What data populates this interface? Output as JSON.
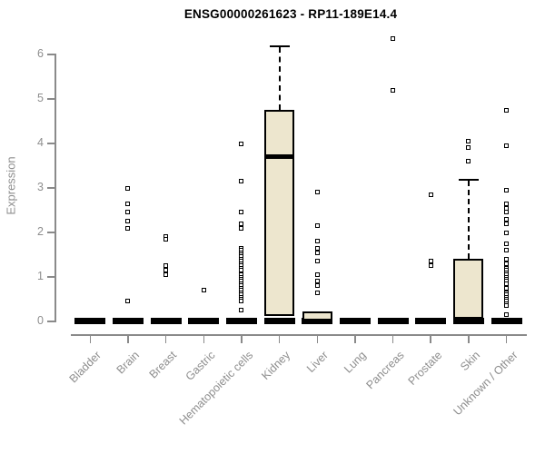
{
  "title": "ENSG00000261623 - RP11-189E14.4",
  "y_axis": {
    "label": "Expression"
  },
  "colors": {
    "box_fill": "#EDE6CE",
    "box_border": "#000000",
    "axis": "#8A8A8A",
    "tick_label": "#8E8E8E",
    "title": "#000000",
    "outlier_fill": "#FFFFFF"
  },
  "chart_data": {
    "type": "boxplot",
    "title": "ENSG00000261623 - RP11-189E14.4",
    "xlabel": "",
    "ylabel": "Expression",
    "ylim": [
      0,
      6.5
    ],
    "y_ticks": [
      0,
      1,
      2,
      3,
      4,
      5,
      6
    ],
    "grid": false,
    "legend": "none",
    "categories": [
      "Bladder",
      "Brain",
      "Breast",
      "Gastric",
      "Hematopoietic cells",
      "Kidney",
      "Liver",
      "Lung",
      "Pancreas",
      "Prostate",
      "Skin",
      "Unknown / Other"
    ],
    "series": [
      {
        "name": "Bladder",
        "q1": 0,
        "median": 0,
        "q3": 0,
        "whisker_low": 0,
        "whisker_high": 0,
        "outliers": []
      },
      {
        "name": "Brain",
        "q1": 0,
        "median": 0,
        "q3": 0,
        "whisker_low": 0,
        "whisker_high": 0,
        "outliers": [
          3.0,
          2.65,
          2.45,
          2.25,
          2.1,
          0.45
        ]
      },
      {
        "name": "Breast",
        "q1": 0,
        "median": 0,
        "q3": 0,
        "whisker_low": 0,
        "whisker_high": 0,
        "outliers": [
          1.9,
          1.85,
          1.25,
          1.15,
          1.05
        ]
      },
      {
        "name": "Gastric",
        "q1": 0,
        "median": 0,
        "q3": 0,
        "whisker_low": 0,
        "whisker_high": 0,
        "outliers": [
          0.7
        ]
      },
      {
        "name": "Hematopoietic cells",
        "q1": 0,
        "median": 0,
        "q3": 0,
        "whisker_low": 0,
        "whisker_high": 0,
        "outliers": [
          4.0,
          3.15,
          2.45,
          2.2,
          2.1,
          1.65,
          1.6,
          1.55,
          1.5,
          1.45,
          1.4,
          1.35,
          1.3,
          1.25,
          1.2,
          1.15,
          1.05,
          1.0,
          0.95,
          0.9,
          0.85,
          0.8,
          0.75,
          0.7,
          0.65,
          0.6,
          0.55,
          0.5,
          0.45,
          0.25
        ]
      },
      {
        "name": "Kidney",
        "q1": 0.12,
        "median": 3.7,
        "q3": 4.75,
        "whisker_low": 0,
        "whisker_high": 6.2,
        "outliers": []
      },
      {
        "name": "Liver",
        "q1": 0,
        "median": 0.02,
        "q3": 0.22,
        "whisker_low": 0,
        "whisker_high": 0.22,
        "outliers": [
          2.9,
          2.15,
          1.8,
          1.65,
          1.55,
          1.35,
          1.05,
          0.9,
          0.8,
          0.65
        ]
      },
      {
        "name": "Lung",
        "q1": 0,
        "median": 0,
        "q3": 0,
        "whisker_low": 0,
        "whisker_high": 0,
        "outliers": []
      },
      {
        "name": "Pancreas",
        "q1": 0,
        "median": 0,
        "q3": 0,
        "whisker_low": 0,
        "whisker_high": 0,
        "outliers": [
          6.35,
          5.2
        ]
      },
      {
        "name": "Prostate",
        "q1": 0,
        "median": 0,
        "q3": 0,
        "whisker_low": 0,
        "whisker_high": 0,
        "outliers": [
          2.85,
          1.35,
          1.25
        ]
      },
      {
        "name": "Skin",
        "q1": 0,
        "median": 0.05,
        "q3": 1.4,
        "whisker_low": 0,
        "whisker_high": 3.2,
        "outliers": [
          4.05,
          3.9,
          3.6
        ]
      },
      {
        "name": "Unknown / Other",
        "q1": 0,
        "median": 0,
        "q3": 0,
        "whisker_low": 0,
        "whisker_high": 0,
        "outliers": [
          4.75,
          3.95,
          2.95,
          2.65,
          2.55,
          2.45,
          2.3,
          2.2,
          2.0,
          1.75,
          1.6,
          1.4,
          1.3,
          1.2,
          1.15,
          1.1,
          1.05,
          1.0,
          0.95,
          0.9,
          0.85,
          0.75,
          0.65,
          0.6,
          0.55,
          0.5,
          0.45,
          0.4,
          0.35,
          0.15
        ]
      }
    ]
  }
}
